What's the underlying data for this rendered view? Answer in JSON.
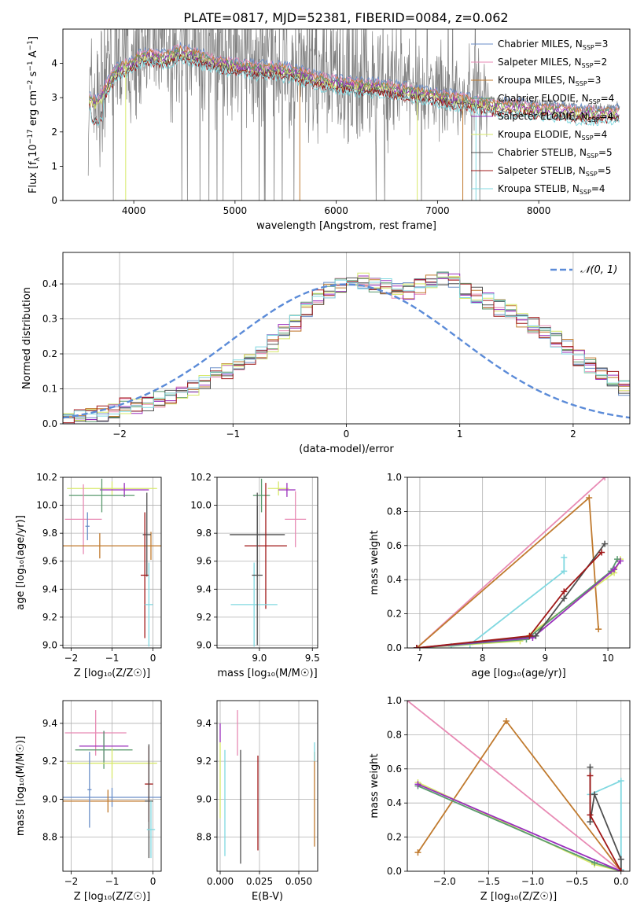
{
  "figure_title": "PLATE=0817, MJD=52381, FIBERID=0084, z=0.062",
  "colors": {
    "chabrier_miles": "#6a8ec8",
    "salpeter_miles": "#e88ab4",
    "kroupa_miles": "#c07a2e",
    "chabrier_elodie": "#5a9a6e",
    "salpeter_elodie": "#9a2fbc",
    "kroupa_elodie": "#d7e86a",
    "chabrier_stelib": "#505050",
    "salpeter_stelib": "#a01818",
    "kroupa_stelib": "#80d8e0",
    "data": "#808080",
    "normal": "#5b8bd8",
    "grid": "#b0b0b0"
  },
  "chart_data": [
    {
      "type": "line",
      "panel": "spectrum",
      "xlabel": "wavelength [Angstrom, rest frame]",
      "ylabel_main": "Flux [f",
      "ylabel_sub": "λ",
      "ylabel_rest": "10",
      "ylabel_exp": "−17",
      "ylabel_units": " erg cm",
      "ylabel_exp2": "−2",
      "ylabel_s": " s",
      "ylabel_exp3": "−1",
      "ylabel_A": " A",
      "ylabel_exp4": "−1",
      "ylabel_close": "]",
      "xlim": [
        3300,
        8900
      ],
      "ylim": [
        0,
        5
      ],
      "xticks": [
        "4000",
        "5000",
        "6000",
        "7000",
        "8000"
      ],
      "xtick_values": [
        4000,
        5000,
        6000,
        7000,
        8000
      ],
      "yticks": [
        "0",
        "1",
        "2",
        "3",
        "4"
      ],
      "ytick_values": [
        0,
        1,
        2,
        3,
        4
      ],
      "legend": [
        {
          "label": "Chabrier MILES, N",
          "sub": "SSP",
          "suffix": "=3",
          "color_key": "chabrier_miles"
        },
        {
          "label": "Salpeter MILES, N",
          "sub": "SSP",
          "suffix": "=2",
          "color_key": "salpeter_miles"
        },
        {
          "label": "Kroupa MILES, N",
          "sub": "SSP",
          "suffix": "=3",
          "color_key": "kroupa_miles"
        },
        {
          "label": "Chabrier ELODIE, N",
          "sub": "SSP",
          "suffix": "=4",
          "color_key": "chabrier_elodie"
        },
        {
          "label": "Salpeter ELODIE, N",
          "sub": "SSP",
          "suffix": "=4",
          "color_key": "salpeter_elodie"
        },
        {
          "label": "Kroupa ELODIE, N",
          "sub": "SSP",
          "suffix": "=4",
          "color_key": "kroupa_elodie"
        },
        {
          "label": "Chabrier STELIB, N",
          "sub": "SSP",
          "suffix": "=5",
          "color_key": "chabrier_stelib"
        },
        {
          "label": "Salpeter STELIB, N",
          "sub": "SSP",
          "suffix": "=5",
          "color_key": "salpeter_stelib"
        },
        {
          "label": "Kroupa STELIB, N",
          "sub": "SSP",
          "suffix": "=4",
          "color_key": "kroupa_stelib"
        }
      ],
      "continuum": {
        "x": [
          3550,
          3650,
          3750,
          3850,
          3950,
          4050,
          4150,
          4300,
          4450,
          4600,
          4800,
          5000,
          5200,
          5400,
          5600,
          5800,
          6000,
          6200,
          6400,
          6600,
          6800,
          7000,
          7200,
          7400,
          7600,
          7800,
          8000,
          8200,
          8400,
          8600,
          8800
        ],
        "y": [
          3.1,
          3.0,
          3.6,
          4.0,
          4.1,
          4.3,
          4.4,
          4.3,
          4.5,
          4.4,
          4.2,
          4.1,
          4.0,
          4.0,
          3.9,
          3.7,
          3.6,
          3.5,
          3.5,
          3.4,
          3.3,
          3.2,
          3.1,
          3.0,
          2.9,
          2.9,
          2.8,
          2.8,
          2.7,
          2.7,
          2.7
        ]
      }
    },
    {
      "type": "histogram",
      "panel": "residuals",
      "xlabel": "(data-model)/error",
      "ylabel": "Normed distribution",
      "xlim": [
        -2.5,
        2.5
      ],
      "ylim": [
        0,
        0.49
      ],
      "xticks": [
        "−2",
        "−1",
        "0",
        "1",
        "2"
      ],
      "xtick_values": [
        -2,
        -1,
        0,
        1,
        2
      ],
      "yticks": [
        "0.0",
        "0.1",
        "0.2",
        "0.3",
        "0.4"
      ],
      "ytick_values": [
        0,
        0.1,
        0.2,
        0.3,
        0.4
      ],
      "legend_label": "𝒩(0, 1)",
      "bin_width": 0.1,
      "bins_start": -2.5,
      "base_values": [
        0.02,
        0.02,
        0.03,
        0.03,
        0.04,
        0.05,
        0.05,
        0.06,
        0.07,
        0.08,
        0.09,
        0.1,
        0.12,
        0.14,
        0.15,
        0.16,
        0.18,
        0.21,
        0.23,
        0.26,
        0.29,
        0.33,
        0.36,
        0.38,
        0.4,
        0.41,
        0.41,
        0.4,
        0.39,
        0.38,
        0.38,
        0.39,
        0.41,
        0.42,
        0.41,
        0.38,
        0.37,
        0.35,
        0.33,
        0.32,
        0.3,
        0.28,
        0.26,
        0.24,
        0.22,
        0.19,
        0.17,
        0.15,
        0.13,
        0.1,
        0.08,
        0.06,
        0.05,
        0.04,
        0.03,
        0.03,
        0.02,
        0.02,
        0.02,
        0.02
      ]
    },
    {
      "type": "errorbar",
      "panel": "age_vs_Z",
      "xlabel": "Z [log₁₀(Z/Z☉)]",
      "ylabel": "age  [log₁₀(age/yr)]",
      "xlim": [
        -2.2,
        0.2
      ],
      "ylim": [
        8.98,
        10.2
      ],
      "xticks": [
        "−2",
        "−1",
        "0"
      ],
      "xtick_values": [
        -2,
        -1,
        0
      ],
      "yticks": [
        "9.0",
        "9.2",
        "9.4",
        "9.6",
        "9.8",
        "10.0",
        "10.2"
      ],
      "ytick_values": [
        9.0,
        9.2,
        9.4,
        9.6,
        9.8,
        10.0,
        10.2
      ],
      "points": [
        {
          "x": -1.0,
          "y": 10.12,
          "xerr": 1.1,
          "yerr": 0.05,
          "color_key": "kroupa_elodie"
        },
        {
          "x": -0.7,
          "y": 10.11,
          "xerr": 0.6,
          "yerr": 0.05,
          "color_key": "salpeter_elodie"
        },
        {
          "x": -1.25,
          "y": 10.07,
          "xerr": 0.8,
          "yerr": 0.12,
          "color_key": "chabrier_elodie"
        },
        {
          "x": -1.7,
          "y": 9.9,
          "xerr": 0.45,
          "yerr": 0.25,
          "color_key": "salpeter_miles"
        },
        {
          "x": -1.3,
          "y": 9.71,
          "xerr": 1.0,
          "yerr": 0.09,
          "color_key": "kroupa_miles"
        },
        {
          "x": -0.05,
          "y": 9.71,
          "xerr": 0.25,
          "yerr": 0.1,
          "color_key": "kroupa_miles"
        },
        {
          "x": -0.15,
          "y": 9.79,
          "xerr": 0.1,
          "yerr": 0.3,
          "color_key": "chabrier_stelib"
        },
        {
          "x": -0.2,
          "y": 9.5,
          "xerr": 0.1,
          "yerr": 0.45,
          "color_key": "salpeter_stelib"
        },
        {
          "x": -0.1,
          "y": 9.29,
          "xerr": 0.1,
          "yerr": 0.3,
          "color_key": "kroupa_stelib"
        },
        {
          "x": -1.6,
          "y": 9.85,
          "xerr": 0.05,
          "yerr": 0.1,
          "color_key": "chabrier_miles"
        }
      ]
    },
    {
      "type": "errorbar",
      "panel": "age_vs_mass",
      "xlabel": "mass [log₁₀(M/M☉)]",
      "ylabel": "",
      "xlim": [
        8.6,
        9.55
      ],
      "ylim": [
        8.98,
        10.2
      ],
      "xticks": [
        "9.0",
        "9.5"
      ],
      "xtick_values": [
        9.0,
        9.5
      ],
      "yticks": [
        "9.0",
        "9.2",
        "9.4",
        "9.6",
        "9.8",
        "10.0",
        "10.2"
      ],
      "ytick_values": [
        9.0,
        9.2,
        9.4,
        9.6,
        9.8,
        10.0,
        10.2
      ],
      "points": [
        {
          "x": 9.18,
          "y": 10.12,
          "xerr": 0.1,
          "yerr": 0.05,
          "color_key": "kroupa_elodie"
        },
        {
          "x": 9.26,
          "y": 10.11,
          "xerr": 0.08,
          "yerr": 0.05,
          "color_key": "salpeter_elodie"
        },
        {
          "x": 9.02,
          "y": 10.07,
          "xerr": 0.08,
          "yerr": 0.12,
          "color_key": "chabrier_elodie"
        },
        {
          "x": 9.34,
          "y": 9.9,
          "xerr": 0.1,
          "yerr": 0.2,
          "color_key": "salpeter_miles"
        },
        {
          "x": 8.98,
          "y": 9.79,
          "xerr": 0.26,
          "yerr": 0.3,
          "color_key": "chabrier_stelib"
        },
        {
          "x": 9.06,
          "y": 9.71,
          "xerr": 0.2,
          "yerr": 0.45,
          "color_key": "salpeter_stelib"
        },
        {
          "x": 8.95,
          "y": 9.29,
          "xerr": 0.22,
          "yerr": 0.3,
          "color_key": "kroupa_stelib"
        },
        {
          "x": 8.98,
          "y": 9.5,
          "xerr": 0.05,
          "yerr": 0.5,
          "color_key": "chabrier_stelib"
        }
      ]
    },
    {
      "type": "line",
      "panel": "mass_weight_vs_age",
      "xlabel": "age  [log₁₀(age/yr)]",
      "ylabel": "mass weight",
      "xlim": [
        6.8,
        10.35
      ],
      "ylim": [
        0,
        1.0
      ],
      "xticks": [
        "7",
        "8",
        "9",
        "10"
      ],
      "xtick_values": [
        7,
        8,
        9,
        10
      ],
      "yticks": [
        "0.0",
        "0.2",
        "0.4",
        "0.6",
        "0.8",
        "1.0"
      ],
      "ytick_values": [
        0,
        0.2,
        0.4,
        0.6,
        0.8,
        1.0
      ],
      "series": [
        {
          "color_key": "salpeter_miles",
          "x": [
            6.95,
            9.95
          ],
          "y": [
            0.0,
            1.0
          ]
        },
        {
          "color_key": "kroupa_miles",
          "x": [
            6.95,
            9.7,
            9.85
          ],
          "y": [
            0.0,
            0.88,
            0.11
          ]
        },
        {
          "color_key": "kroupa_stelib",
          "x": [
            7.5,
            7.8,
            9.3,
            9.3
          ],
          "y": [
            0.01,
            0.02,
            0.45,
            0.53
          ]
        },
        {
          "color_key": "kroupa_elodie",
          "x": [
            6.95,
            8.6,
            10.1,
            10.2
          ],
          "y": [
            0.0,
            0.04,
            0.44,
            0.52
          ]
        },
        {
          "color_key": "chabrier_elodie",
          "x": [
            6.95,
            8.7,
            10.05,
            10.15
          ],
          "y": [
            0.0,
            0.05,
            0.45,
            0.52
          ]
        },
        {
          "color_key": "salpeter_elodie",
          "x": [
            6.95,
            8.8,
            10.1,
            10.2
          ],
          "y": [
            0.0,
            0.06,
            0.46,
            0.51
          ]
        },
        {
          "color_key": "chabrier_stelib",
          "x": [
            6.95,
            8.85,
            9.3,
            9.95
          ],
          "y": [
            0.0,
            0.07,
            0.29,
            0.61
          ]
        },
        {
          "color_key": "salpeter_stelib",
          "x": [
            6.95,
            8.75,
            9.3,
            9.9
          ],
          "y": [
            0.0,
            0.07,
            0.33,
            0.56
          ]
        }
      ]
    },
    {
      "type": "errorbar",
      "panel": "mass_vs_Z",
      "xlabel": "Z [log₁₀(Z/Z☉)]",
      "ylabel": "mass [log₁₀(M/M☉)]",
      "xlim": [
        -2.2,
        0.2
      ],
      "ylim": [
        8.62,
        9.52
      ],
      "xticks": [
        "−2",
        "−1",
        "0"
      ],
      "xtick_values": [
        -2,
        -1,
        0
      ],
      "yticks": [
        "8.8",
        "9.0",
        "9.2",
        "9.4"
      ],
      "ytick_values": [
        8.8,
        9.0,
        9.2,
        9.4
      ],
      "points": [
        {
          "x": -1.4,
          "y": 9.35,
          "xerr": 0.75,
          "yerr": 0.12,
          "color_key": "salpeter_miles"
        },
        {
          "x": -1.2,
          "y": 9.28,
          "xerr": 0.6,
          "yerr": 0.08,
          "color_key": "salpeter_elodie"
        },
        {
          "x": -1.2,
          "y": 9.26,
          "xerr": 0.7,
          "yerr": 0.1,
          "color_key": "chabrier_elodie"
        },
        {
          "x": -1.0,
          "y": 9.19,
          "xerr": 1.1,
          "yerr": 0.08,
          "color_key": "kroupa_elodie"
        },
        {
          "x": -1.0,
          "y": 9.01,
          "xerr": 1.2,
          "yerr": 0.05,
          "color_key": "chabrier_miles"
        },
        {
          "x": -1.1,
          "y": 8.99,
          "xerr": 1.1,
          "yerr": 0.06,
          "color_key": "kroupa_miles"
        },
        {
          "x": -0.1,
          "y": 9.08,
          "xerr": 0.1,
          "yerr": 0.2,
          "color_key": "salpeter_stelib"
        },
        {
          "x": -0.1,
          "y": 8.99,
          "xerr": 0.1,
          "yerr": 0.3,
          "color_key": "chabrier_stelib"
        },
        {
          "x": -0.05,
          "y": 8.84,
          "xerr": 0.1,
          "yerr": 0.15,
          "color_key": "kroupa_stelib"
        },
        {
          "x": -1.55,
          "y": 9.05,
          "xerr": 0.05,
          "yerr": 0.2,
          "color_key": "chabrier_miles"
        }
      ]
    },
    {
      "type": "errorbar",
      "panel": "mass_vs_ebv",
      "xlabel": "E(B-V)",
      "ylabel": "",
      "xlim": [
        -0.002,
        0.062
      ],
      "ylim": [
        8.62,
        9.52
      ],
      "xticks": [
        "0.000",
        "0.025",
        "0.050"
      ],
      "xtick_values": [
        0.0,
        0.025,
        0.05
      ],
      "yticks": [
        "8.8",
        "9.0",
        "9.2",
        "9.4"
      ],
      "ytick_values": [
        8.8,
        9.0,
        9.2,
        9.4
      ],
      "points": [
        {
          "x": 0.0,
          "y": 9.35,
          "xerr": 0,
          "yerr": 0.05,
          "color_key": "salpeter_elodie"
        },
        {
          "x": 0.0,
          "y": 9.1,
          "xerr": 0,
          "yerr": 0.2,
          "color_key": "kroupa_elodie"
        },
        {
          "x": 0.003,
          "y": 8.98,
          "xerr": 0,
          "yerr": 0.28,
          "color_key": "kroupa_stelib"
        },
        {
          "x": 0.011,
          "y": 9.35,
          "xerr": 0,
          "yerr": 0.12,
          "color_key": "salpeter_miles"
        },
        {
          "x": 0.013,
          "y": 8.96,
          "xerr": 0,
          "yerr": 0.3,
          "color_key": "chabrier_stelib"
        },
        {
          "x": 0.024,
          "y": 8.98,
          "xerr": 0,
          "yerr": 0.25,
          "color_key": "salpeter_stelib"
        },
        {
          "x": 0.06,
          "y": 9.0,
          "xerr": 0,
          "yerr": 0.25,
          "color_key": "kroupa_miles"
        },
        {
          "x": 0.06,
          "y": 9.25,
          "xerr": 0,
          "yerr": 0.05,
          "color_key": "kroupa_stelib"
        }
      ]
    },
    {
      "type": "line",
      "panel": "mass_weight_vs_Z",
      "xlabel": "Z [log₁₀(Z/Z☉)]",
      "ylabel": "mass weight",
      "xlim": [
        -2.42,
        0.1
      ],
      "ylim": [
        0,
        1.0
      ],
      "xticks": [
        "−2.0",
        "−1.5",
        "−1.0",
        "−0.5",
        "0.0"
      ],
      "xtick_values": [
        -2.0,
        -1.5,
        -1.0,
        -0.5,
        0.0
      ],
      "yticks": [
        "0.0",
        "0.2",
        "0.4",
        "0.6",
        "0.8",
        "1.0"
      ],
      "ytick_values": [
        0,
        0.2,
        0.4,
        0.6,
        0.8,
        1.0
      ],
      "series": [
        {
          "color_key": "salpeter_miles",
          "x": [
            -2.42,
            0.0
          ],
          "y": [
            1.0,
            0.0
          ]
        },
        {
          "color_key": "kroupa_miles",
          "x": [
            -2.3,
            -1.3,
            0.0
          ],
          "y": [
            0.11,
            0.88,
            0.0
          ]
        },
        {
          "color_key": "kroupa_stelib",
          "x": [
            -0.35,
            0.0,
            0.0
          ],
          "y": [
            0.45,
            0.53,
            0.01
          ]
        },
        {
          "color_key": "kroupa_elodie",
          "x": [
            -2.3,
            -0.3,
            0.0
          ],
          "y": [
            0.52,
            0.04,
            0.0
          ]
        },
        {
          "color_key": "chabrier_elodie",
          "x": [
            -2.3,
            -0.3,
            0.0
          ],
          "y": [
            0.5,
            0.05,
            0.0
          ]
        },
        {
          "color_key": "salpeter_elodie",
          "x": [
            -2.3,
            0.0
          ],
          "y": [
            0.51,
            0.0
          ]
        },
        {
          "color_key": "chabrier_stelib",
          "x": [
            -0.35,
            -0.35,
            -0.3,
            0.0,
            0.0
          ],
          "y": [
            0.61,
            0.29,
            0.45,
            0.07,
            0.0
          ]
        },
        {
          "color_key": "salpeter_stelib",
          "x": [
            -0.35,
            -0.35,
            0.0
          ],
          "y": [
            0.56,
            0.33,
            0.0
          ]
        }
      ]
    }
  ]
}
